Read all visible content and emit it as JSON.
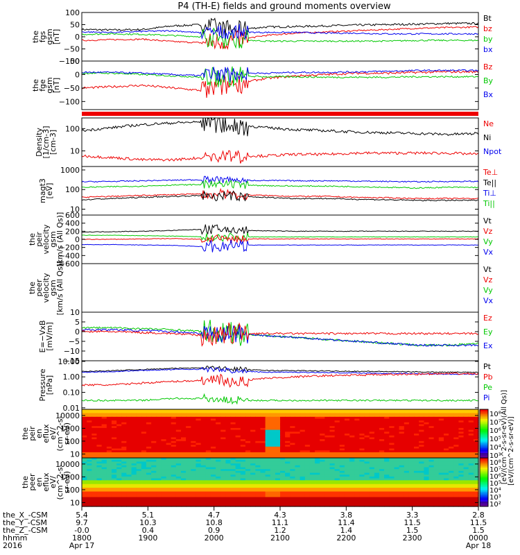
{
  "title": "P4 (TH-E) fields and ground moments overview",
  "chart_data": {
    "type": "line",
    "title": "P4 (TH-E) fields and ground moments overview",
    "x_axis": {
      "rows": [
        {
          "label": "the_X_-CSM",
          "values": [
            "5.4",
            "5.1",
            "4.7",
            "4.3",
            "3.8",
            "3.3",
            "2.8"
          ]
        },
        {
          "label": "the_Y_-CSM",
          "values": [
            "9.7",
            "10.3",
            "10.8",
            "11.1",
            "11.4",
            "11.5",
            "11.5"
          ]
        },
        {
          "label": "the_Z_-CSM",
          "values": [
            "-0.0",
            "0.4",
            "0.9",
            "1.2",
            "1.4",
            "1.5",
            "1.5"
          ]
        },
        {
          "label": "hhmm",
          "values": [
            "1800",
            "1900",
            "2000",
            "2100",
            "2200",
            "2300",
            "0000"
          ]
        },
        {
          "label": "2016",
          "values": [
            "Apr 17",
            "",
            "",
            "",
            "",
            "",
            "Apr 18"
          ]
        }
      ]
    },
    "panels": [
      {
        "ylabel": [
          "the",
          "fgs",
          "gsm",
          "[nT]"
        ],
        "scale": "linear",
        "ylim": [
          -100,
          100
        ],
        "ticks": [
          "100",
          "50",
          "0",
          "−50",
          "−100"
        ],
        "legend": [
          {
            "name": "Bt",
            "color": "#000000"
          },
          {
            "name": "bz",
            "color": "#ee0000"
          },
          {
            "name": "by",
            "color": "#00c800"
          },
          {
            "name": "bx",
            "color": "#0000ee"
          }
        ],
        "series": [
          {
            "name": "Bt",
            "color": "#000000",
            "base": [
              30,
              28,
              30,
              45,
              50,
              28,
              40,
              42,
              45,
              48,
              50,
              52,
              55,
              55
            ],
            "noise": 4,
            "spike": 35
          },
          {
            "name": "bz",
            "color": "#ee0000",
            "base": [
              -15,
              -12,
              -10,
              -20,
              -25,
              -15,
              5,
              15,
              20,
              25,
              30,
              35,
              38,
              40
            ],
            "noise": 3,
            "spike": 40
          },
          {
            "name": "by",
            "color": "#00c800",
            "base": [
              10,
              12,
              10,
              5,
              0,
              -10,
              -18,
              -18,
              -18,
              -18,
              -18,
              -15,
              -15,
              -15
            ],
            "noise": 3,
            "spike": 40
          },
          {
            "name": "bx",
            "color": "#0000ee",
            "base": [
              20,
              18,
              22,
              25,
              15,
              20,
              18,
              18,
              15,
              15,
              12,
              12,
              12,
              12
            ],
            "noise": 3,
            "spike": 30
          }
        ]
      },
      {
        "ylabel": [
          "the",
          "fge",
          "gsm",
          "[nT]"
        ],
        "scale": "linear",
        "ylim": [
          -130,
          50
        ],
        "ticks": [
          "50",
          "0",
          "−50",
          "−100"
        ],
        "legend": [
          {
            "name": "Bz",
            "color": "#ee0000"
          },
          {
            "name": "By",
            "color": "#00c800"
          },
          {
            "name": "Bx",
            "color": "#0000ee"
          }
        ],
        "series": [
          {
            "name": "Bz",
            "color": "#ee0000",
            "base": [
              -50,
              -45,
              -40,
              -50,
              -60,
              -35,
              -15,
              -5,
              0,
              5,
              5,
              8,
              10,
              10
            ],
            "noise": 4,
            "spike": 40
          },
          {
            "name": "By",
            "color": "#00c800",
            "base": [
              5,
              5,
              0,
              -5,
              -10,
              -5,
              -8,
              -8,
              -10,
              -10,
              -10,
              -8,
              -8,
              -8
            ],
            "noise": 3,
            "spike": 40
          },
          {
            "name": "Bx",
            "color": "#0000ee",
            "base": [
              8,
              8,
              5,
              0,
              -5,
              5,
              5,
              8,
              8,
              10,
              12,
              15,
              15,
              15
            ],
            "noise": 3,
            "spike": 30
          }
        ]
      },
      {
        "ylabel": [
          "Density",
          "[1/cm-3]",
          "[cm-3]"
        ],
        "scale": "log",
        "ylim": [
          2,
          300
        ],
        "ticks": [
          "100",
          "10"
        ],
        "legend": [
          {
            "name": "Ne",
            "color": "#ee0000"
          },
          {
            "name": "Ni",
            "color": "#000000"
          },
          {
            "name": "Npot",
            "color": "#0000ee"
          }
        ],
        "series": [
          {
            "name": "Ni",
            "color": "#000000",
            "base": [
              80,
              110,
              150,
              180,
              200,
              150,
              110,
              90,
              80,
              70,
              65,
              60,
              55,
              60
            ],
            "noise": 0.06,
            "spike": 1.0
          },
          {
            "name": "Ne",
            "color": "#ee0000",
            "base": [
              6,
              5,
              4,
              4,
              5,
              6,
              6,
              7,
              7,
              8,
              8,
              8,
              8,
              7
            ],
            "noise": 0.06,
            "spike": 0.6
          }
        ]
      },
      {
        "ylabel": [
          "magt3",
          "[eV]"
        ],
        "scale": "log",
        "ylim": [
          5,
          1500
        ],
        "ticks": [
          "1000",
          "100",
          "10"
        ],
        "legend": [
          {
            "name": "Te⊥",
            "color": "#ee0000"
          },
          {
            "name": "Te||",
            "color": "#000000"
          },
          {
            "name": "Ti⊥",
            "color": "#0000ee"
          },
          {
            "name": "Ti||",
            "color": "#00c800"
          }
        ],
        "series": [
          {
            "name": "Ti⊥",
            "color": "#0000ee",
            "base": [
              250,
              260,
              280,
              300,
              320,
              300,
              290,
              280,
              280,
              270,
              260,
              250,
              260,
              260
            ],
            "noise": 0.03,
            "spike": 0.4
          },
          {
            "name": "Ti||",
            "color": "#00c800",
            "base": [
              130,
              140,
              150,
              170,
              180,
              170,
              160,
              150,
              150,
              140,
              130,
              120,
              130,
              130
            ],
            "noise": 0.03,
            "spike": 0.4
          },
          {
            "name": "Te⊥",
            "color": "#ee0000",
            "base": [
              40,
              45,
              50,
              55,
              60,
              55,
              50,
              45,
              45,
              40,
              38,
              35,
              35,
              35
            ],
            "noise": 0.03,
            "spike": 0.5
          },
          {
            "name": "Te||",
            "color": "#000000",
            "base": [
              30,
              35,
              40,
              45,
              50,
              45,
              40,
              35,
              35,
              32,
              30,
              28,
              28,
              28
            ],
            "noise": 0.03,
            "spike": 0.5
          }
        ]
      },
      {
        "ylabel": [
          "the",
          "peir",
          "velocity",
          "gsm",
          "[km/s (All Qs)]"
        ],
        "scale": "linear",
        "ylim": [
          -600,
          600
        ],
        "ticks": [
          "600",
          "400",
          "200",
          "0",
          "−200",
          "−400",
          "−600"
        ],
        "legend": [
          {
            "name": "Vt",
            "color": "#000000"
          },
          {
            "name": "Vz",
            "color": "#ee0000"
          },
          {
            "name": "Vy",
            "color": "#00c800"
          },
          {
            "name": "Vx",
            "color": "#0000ee"
          }
        ],
        "series": [
          {
            "name": "Vt",
            "color": "#000000",
            "base": [
              180,
              190,
              200,
              220,
              250,
              230,
              210,
              200,
              200,
              200,
              200,
              200,
              200,
              200
            ],
            "noise": 8,
            "spike": 120
          },
          {
            "name": "Vy",
            "color": "#00c800",
            "base": [
              100,
              100,
              90,
              80,
              60,
              60,
              60,
              60,
              60,
              60,
              60,
              60,
              60,
              60
            ],
            "noise": 6,
            "spike": 100
          },
          {
            "name": "Vz",
            "color": "#ee0000",
            "base": [
              0,
              0,
              10,
              20,
              0,
              10,
              10,
              10,
              10,
              10,
              10,
              10,
              10,
              10
            ],
            "noise": 8,
            "spike": 100
          },
          {
            "name": "Vx",
            "color": "#0000ee",
            "base": [
              -130,
              -130,
              -140,
              -150,
              -180,
              -150,
              -140,
              -140,
              -140,
              -140,
              -140,
              -140,
              -140,
              -140
            ],
            "noise": 6,
            "spike": 150
          }
        ]
      },
      {
        "ylabel": [
          "the",
          "peer",
          "velocity",
          "gsm",
          "[km/s (All Qs)]"
        ],
        "scale": "linear",
        "ylim": [
          -600,
          600
        ],
        "ticks": [],
        "legend": [
          {
            "name": "Vt",
            "color": "#000000"
          },
          {
            "name": "Vz",
            "color": "#ee0000"
          },
          {
            "name": "Vy",
            "color": "#00c800"
          },
          {
            "name": "Vx",
            "color": "#0000ee"
          }
        ],
        "series": []
      },
      {
        "ylabel": [
          "E=−VxB",
          "[mV/m]"
        ],
        "scale": "linear",
        "ylim": [
          -15,
          10
        ],
        "ticks": [
          "10",
          "5",
          "0",
          "−5",
          "−10",
          "−15"
        ],
        "legend": [
          {
            "name": "Ez",
            "color": "#ee0000"
          },
          {
            "name": "Ey",
            "color": "#00c800"
          },
          {
            "name": "Ex",
            "color": "#0000ee"
          }
        ],
        "series": [
          {
            "name": "Ey",
            "color": "#00c800",
            "base": [
              2,
              2,
              1.5,
              1,
              0,
              -1,
              -2,
              -3,
              -4,
              -5,
              -6,
              -7,
              -7,
              -6
            ],
            "noise": 0.5,
            "spike": 6
          },
          {
            "name": "Ex",
            "color": "#0000ee",
            "base": [
              1,
              1,
              0.5,
              0,
              -1,
              -1,
              -2,
              -3,
              -4,
              -5,
              -6,
              -7,
              -7,
              -7
            ],
            "noise": 0.5,
            "spike": 5
          },
          {
            "name": "Ez",
            "color": "#ee0000",
            "base": [
              0,
              0,
              -0.5,
              -1,
              -2,
              -1,
              -1,
              -1,
              -1,
              -1,
              -1,
              -1,
              -1,
              -1
            ],
            "noise": 0.5,
            "spike": 6
          }
        ]
      },
      {
        "ylabel": [
          "Pressure",
          "[nPa]"
        ],
        "scale": "log",
        "ylim": [
          0.008,
          11
        ],
        "ticks": [
          "10.00",
          "1.00",
          "0.10",
          "0.01"
        ],
        "legend": [
          {
            "name": "Pt",
            "color": "#000000"
          },
          {
            "name": "Pb",
            "color": "#ee0000"
          },
          {
            "name": "Pe",
            "color": "#00c800"
          },
          {
            "name": "Pi",
            "color": "#0000ee"
          }
        ],
        "series": [
          {
            "name": "Pt",
            "color": "#000000",
            "base": [
              2.2,
              2.5,
              3,
              3.5,
              4,
              3.2,
              2.6,
              2.5,
              2.4,
              2.3,
              2.2,
              2.1,
              2.0,
              2.0
            ],
            "noise": 0.03,
            "spike": 0.3
          },
          {
            "name": "Pi",
            "color": "#0000ee",
            "base": [
              2.0,
              2.2,
              2.6,
              3,
              3.2,
              2.5,
              2.0,
              2.0,
              1.9,
              1.8,
              1.7,
              1.6,
              1.5,
              1.5
            ],
            "noise": 0.03,
            "spike": 0.3
          },
          {
            "name": "Pb",
            "color": "#ee0000",
            "base": [
              0.3,
              0.3,
              0.4,
              0.5,
              0.6,
              0.5,
              0.8,
              1.0,
              1.2,
              1.3,
              1.4,
              1.5,
              1.6,
              1.6
            ],
            "noise": 0.06,
            "spike": 0.8
          },
          {
            "name": "Pe",
            "color": "#00c800",
            "base": [
              0.03,
              0.03,
              0.03,
              0.04,
              0.04,
              0.03,
              0.03,
              0.03,
              0.03,
              0.03,
              0.03,
              0.03,
              0.03,
              0.03
            ],
            "noise": 0.05,
            "spike": 0.5
          }
        ]
      },
      {
        "ylabel": [
          "the",
          "peir",
          "en",
          "eflux",
          "eV/",
          "(cm^2-s-",
          "sr-eV)"
        ],
        "scale": "log",
        "ylim": [
          5,
          30000
        ],
        "ticks": [
          "10000",
          "1000",
          "100",
          "10"
        ],
        "type": "heatmap",
        "legend": [],
        "series": []
      },
      {
        "ylabel": [
          "the",
          "peer",
          "en",
          "eflux",
          "eV/",
          "(cm^2-s-",
          "sr-eV)"
        ],
        "scale": "log",
        "ylim": [
          5,
          30000
        ],
        "ticks": [
          "10000",
          "1000",
          "100",
          "10"
        ],
        "type": "heatmap",
        "legend": [],
        "series": []
      }
    ],
    "colorbar": {
      "ticks": [
        "10⁸",
        "10⁷",
        "10⁶",
        "10⁵",
        "10⁴",
        "10³"
      ],
      "ticks_lower": [
        "10⁸",
        "10⁷",
        "10⁶",
        "10⁵",
        "10⁴",
        "10³",
        "10²"
      ],
      "label": "[eV/(cm^2-s-sr-eV)]",
      "label2": "[eV/(cm^2-s-sr-eV)(All Qs)]"
    }
  }
}
